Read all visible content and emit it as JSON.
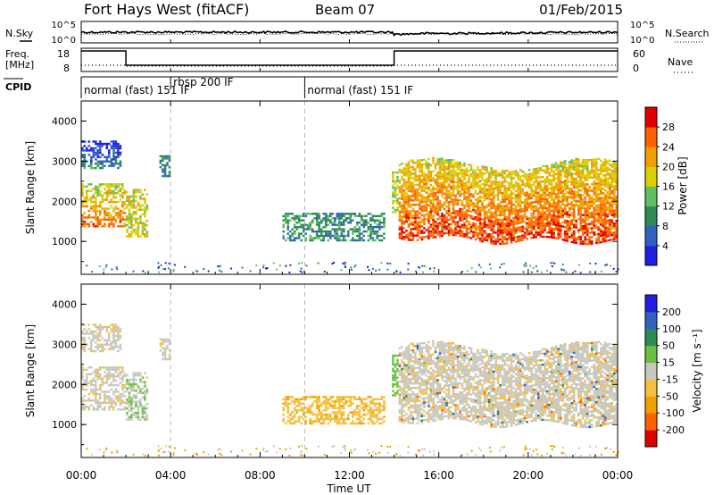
{
  "header": {
    "station": "Fort Hays West (fitACF)",
    "beam": "Beam 07",
    "date": "01/Feb/2015"
  },
  "noise_panel": {
    "left_label": "N.Sky",
    "right_label": "N.Search",
    "left_ticks": [
      "10^5",
      "10^0"
    ],
    "right_ticks": [
      "10^5",
      "10^0"
    ]
  },
  "freq_panel": {
    "left_label_1": "Freq.",
    "left_label_2": "[MHz]",
    "right_label": "Nave",
    "left_ticks": [
      "18",
      "8"
    ],
    "right_ticks": [
      "60",
      "0"
    ]
  },
  "cpid": {
    "label": "CPID",
    "segments": [
      {
        "start_h": 0.0,
        "text": "normal (fast) 151 IF",
        "row": 1
      },
      {
        "start_h": 4.0,
        "text": "rbsp 200 IF",
        "row": 0
      },
      {
        "start_h": 10.0,
        "text": "normal (fast) 151 IF",
        "row": 1
      }
    ]
  },
  "colors": {
    "power_scale": [
      "#1f1fe0",
      "#3060c0",
      "#2e8b57",
      "#5fc05f",
      "#d8d000",
      "#f0a000",
      "#ff6000",
      "#e00000"
    ],
    "velocity_scale": [
      "#e00000",
      "#ff6000",
      "#f0a000",
      "#f5c040",
      "#c8c8c0",
      "#6cc040",
      "#2e8b57",
      "#3060c0",
      "#1f1fe0"
    ]
  },
  "chart_data": {
    "type": "heatmap",
    "x_axis": {
      "label": "Time UT",
      "range_hours": [
        0,
        24
      ],
      "ticks": [
        "00:00",
        "04:00",
        "08:00",
        "12:00",
        "16:00",
        "20:00",
        "00:00"
      ]
    },
    "panels": [
      {
        "name": "power",
        "ylabel": "Slant Range [km]",
        "yrange_km": [
          180,
          4500
        ],
        "yticks": [
          "1000",
          "2000",
          "3000",
          "4000"
        ],
        "colorbar_label": "Power [dB]",
        "colorbar_ticks": [
          "4",
          "8",
          "12",
          "16",
          "20",
          "24",
          "28"
        ],
        "colorbar_range": [
          0,
          32
        ]
      },
      {
        "name": "velocity",
        "ylabel": "Slant Range [km]",
        "yrange_km": [
          180,
          4500
        ],
        "yticks": [
          "1000",
          "2000",
          "3000",
          "4000"
        ],
        "colorbar_label": "Velocity [m s⁻¹]",
        "colorbar_ticks": [
          "-200",
          "-100",
          "-50",
          "-15",
          "15",
          "50",
          "100",
          "200"
        ]
      }
    ],
    "cpid_change_hours": [
      4.0,
      10.0
    ],
    "freq_change_hours": [
      2.0,
      14.0
    ],
    "echo_regions": [
      {
        "t0": 0.0,
        "t1": 2.0,
        "r0": 1350,
        "r1": 2400,
        "power": 22,
        "velocity": -5
      },
      {
        "t0": 0.0,
        "t1": 1.8,
        "r0": 2800,
        "r1": 3500,
        "power": 6,
        "velocity": -5
      },
      {
        "t0": 2.0,
        "t1": 3.0,
        "r0": 1100,
        "r1": 2300,
        "power": 18,
        "velocity": 10
      },
      {
        "t0": 3.5,
        "t1": 4.0,
        "r0": 2600,
        "r1": 3100,
        "power": 8,
        "velocity": -5
      },
      {
        "t0": 9.0,
        "t1": 13.5,
        "r0": 1000,
        "r1": 1700,
        "power": 10,
        "velocity": -40
      },
      {
        "t0": 13.9,
        "t1": 14.2,
        "r0": 1700,
        "r1": 2700,
        "power": 16,
        "velocity": 30
      },
      {
        "t0": 14.2,
        "t1": 24.0,
        "r0": 1000,
        "r1": 3000,
        "power": 24,
        "velocity": -5
      }
    ]
  }
}
